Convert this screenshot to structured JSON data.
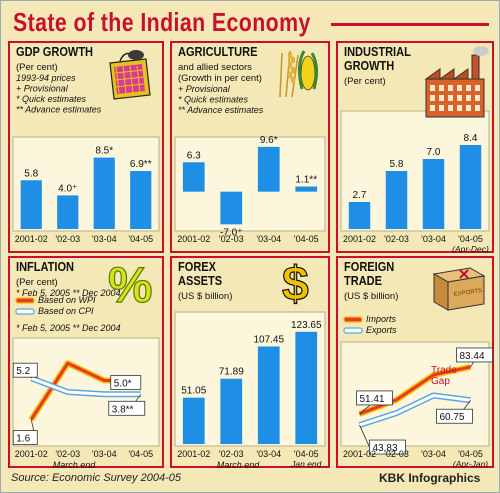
{
  "page": {
    "title": "State of the Indian Economy",
    "source": "Source: Economic Survey 2004-05",
    "credit_bold": "KBK",
    "credit_rest": " Infographics"
  },
  "colors": {
    "bar": "#1f8fe6",
    "frame_border": "#c8102e",
    "title": "#c8102e",
    "panel_bg": "#f4e9b6",
    "inner_bg": "#fbf6dc",
    "wpi_line": "#e8382a",
    "cpi_line": "#5aa7e0",
    "dollar": "#f2c200"
  },
  "chart_data": [
    {
      "id": "gdp",
      "type": "bar",
      "title_lines": [
        "GDP GROWTH"
      ],
      "unit_lines": [
        "(Per cent)"
      ],
      "notes": [
        "1993-94 prices",
        "+ Provisional",
        "* Quick estimates",
        "** Advance estimates"
      ],
      "categories": [
        "2001-02",
        "'02-03",
        "'03-04",
        "'04-05"
      ],
      "values": [
        5.8,
        4.0,
        8.5,
        6.9
      ],
      "labels": [
        "5.8",
        "4.0⁺",
        "8.5*",
        "6.9**"
      ],
      "ylim": [
        0,
        10
      ],
      "footer": "",
      "icon": "shopping-bag-icon"
    },
    {
      "id": "agriculture",
      "type": "bar",
      "title_lines": [
        "AGRICULTURE"
      ],
      "unit_lines": [
        "and allied sectors",
        "(Growth in per cent)"
      ],
      "notes": [
        "+ Provisional",
        "* Quick estimates",
        "** Advance estimates"
      ],
      "categories": [
        "2001-02",
        "'02-03",
        "'03-04",
        "'04-05"
      ],
      "values": [
        6.3,
        -7.0,
        9.6,
        1.1
      ],
      "labels": [
        "6.3",
        "-7.0⁺",
        "9.6*",
        "1.1**"
      ],
      "ylim": [
        -8,
        10
      ],
      "footer": "",
      "icon": "corn-wheat-icon"
    },
    {
      "id": "industrial",
      "type": "bar",
      "title_lines": [
        "INDUSTRIAL",
        "GROWTH"
      ],
      "unit_lines": [
        "(Per cent)"
      ],
      "notes": [],
      "categories": [
        "2001-02",
        "'02-03",
        "'03-04",
        "'04-05"
      ],
      "values": [
        2.7,
        5.8,
        7.0,
        8.4
      ],
      "labels": [
        "2.7",
        "5.8",
        "7.0",
        "8.4"
      ],
      "ylim": [
        0,
        10
      ],
      "footer_right": "(Apr-Dec)",
      "icon": "factory-icon"
    },
    {
      "id": "inflation",
      "type": "line",
      "title_lines": [
        "INFLATION"
      ],
      "unit_lines": [
        "(Per cent)"
      ],
      "legend": [
        "Based on WPI",
        "Based on CPI"
      ],
      "notes": [
        "* Feb 5, 2005  ** Dec 2004"
      ],
      "categories": [
        "2001-02",
        "'02-03",
        "'03-04",
        "'04-05"
      ],
      "series": [
        {
          "name": "Based on WPI",
          "values": [
            1.6,
            6.5,
            5.0,
            5.0
          ]
        },
        {
          "name": "Based on CPI",
          "values": [
            5.2,
            4.0,
            3.8,
            3.8
          ]
        }
      ],
      "labels": [
        "5.2",
        "1.6",
        "5.0*",
        "3.8**"
      ],
      "ylim": [
        0,
        8
      ],
      "footer": "March end",
      "icon": "percent-icon"
    },
    {
      "id": "forex",
      "type": "bar",
      "title_lines": [
        "FOREX",
        "ASSETS"
      ],
      "unit_lines": [
        "(US $ billion)"
      ],
      "notes": [],
      "categories": [
        "2001-02",
        "'02-03",
        "'03-04",
        "'04-05"
      ],
      "values": [
        51.05,
        71.89,
        107.45,
        123.65
      ],
      "labels": [
        "51.05",
        "71.89",
        "107.45",
        "123.65"
      ],
      "ylim": [
        0,
        130
      ],
      "footer": "March end",
      "footer_right": "Jan end",
      "icon": "dollar-icon"
    },
    {
      "id": "trade",
      "type": "line",
      "title_lines": [
        "FOREIGN",
        "TRADE"
      ],
      "unit_lines": [
        "(US $ billion)"
      ],
      "legend": [
        "Imports",
        "Exports"
      ],
      "notes": [],
      "categories": [
        "2001-02",
        "'02-03",
        "'03-04",
        "'04-05"
      ],
      "series": [
        {
          "name": "Imports",
          "values": [
            51.41,
            61.0,
            78.0,
            83.44
          ]
        },
        {
          "name": "Exports",
          "values": [
            43.83,
            52.0,
            64.0,
            60.75
          ]
        }
      ],
      "labels": [
        "51.41",
        "43.83",
        "83.44",
        "60.75"
      ],
      "annotation": "Trade\nGap",
      "ylim": [
        35,
        95
      ],
      "footer_right": "(Apr-Jan)",
      "icon": "export-crate-icon"
    }
  ]
}
